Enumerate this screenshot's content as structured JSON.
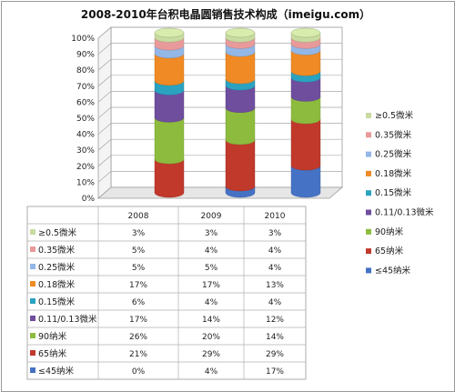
{
  "chart_data": {
    "type": "bar",
    "stacked": true,
    "title": "2008-2010年台积电晶圆销售技术构成（imeigu.com）",
    "categories": [
      "2008",
      "2009",
      "2010"
    ],
    "yticks": [
      "0%",
      "10%",
      "20%",
      "30%",
      "40%",
      "50%",
      "60%",
      "70%",
      "80%",
      "90%",
      "100%"
    ],
    "ylim": [
      0,
      100
    ],
    "legend_position": "right",
    "series": [
      {
        "name": "≤45纳米",
        "values": [
          0,
          4,
          17
        ],
        "labels": [
          "0%",
          "4%",
          "17%"
        ],
        "color": "#4572c4"
      },
      {
        "name": "65纳米",
        "values": [
          21,
          29,
          29
        ],
        "labels": [
          "21%",
          "29%",
          "29%"
        ],
        "color": "#c0392b"
      },
      {
        "name": "90纳米",
        "values": [
          26,
          20,
          14
        ],
        "labels": [
          "26%",
          "20%",
          "14%"
        ],
        "color": "#8dbb3e"
      },
      {
        "name": "0.11/0.13微米",
        "values": [
          17,
          14,
          12
        ],
        "labels": [
          "17%",
          "14%",
          "12%"
        ],
        "color": "#6f4e9e"
      },
      {
        "name": "0.15微米",
        "values": [
          6,
          4,
          4
        ],
        "labels": [
          "6%",
          "4%",
          "4%"
        ],
        "color": "#2aa2c0"
      },
      {
        "name": "0.18微米",
        "values": [
          17,
          17,
          13
        ],
        "labels": [
          "17%",
          "17%",
          "13%"
        ],
        "color": "#f08a24"
      },
      {
        "name": "0.25微米",
        "values": [
          5,
          5,
          4
        ],
        "labels": [
          "5%",
          "5%",
          "4%"
        ],
        "color": "#93b7e6"
      },
      {
        "name": "0.35微米",
        "values": [
          5,
          4,
          4
        ],
        "labels": [
          "5%",
          "4%",
          "4%"
        ],
        "color": "#e89a9a"
      },
      {
        "name": "≥0.5微米",
        "values": [
          3,
          3,
          3
        ],
        "labels": [
          "3%",
          "3%",
          "3%"
        ],
        "color": "#c8dba0"
      }
    ]
  }
}
